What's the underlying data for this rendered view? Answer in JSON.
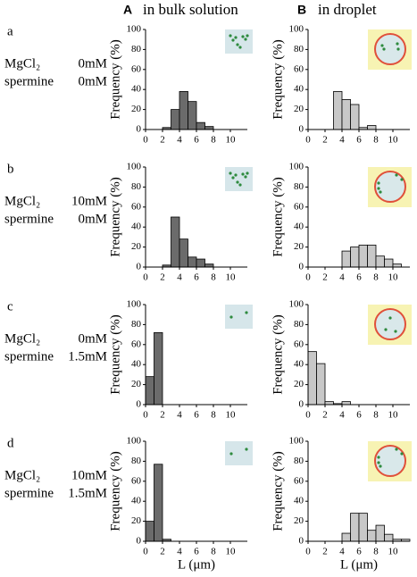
{
  "columns": [
    {
      "letter": "A",
      "title": "in bulk solution"
    },
    {
      "letter": "B",
      "title": "in droplet"
    }
  ],
  "rows": [
    {
      "label": "a",
      "mgcl2": "MgCl₂",
      "mgcl2_conc": "0mM",
      "spermine": "spermine",
      "spermine_conc": "0mM"
    },
    {
      "label": "b",
      "mgcl2": "MgCl₂",
      "mgcl2_conc": "10mM",
      "spermine": "spermine",
      "spermine_conc": "0mM"
    },
    {
      "label": "c",
      "mgcl2": "MgCl₂",
      "mgcl2_conc": "0mM",
      "spermine": "spermine",
      "spermine_conc": "1.5mM"
    },
    {
      "label": "d",
      "mgcl2": "MgCl₂",
      "mgcl2_conc": "10mM",
      "spermine": "spermine",
      "spermine_conc": "1.5mM"
    }
  ],
  "chart_data": [
    {
      "type": "histogram",
      "ylabel": "Frequency (%)",
      "color": "#6b6b6b",
      "bins": [
        0,
        1,
        2,
        3,
        4,
        5,
        6,
        7,
        8,
        9,
        10,
        11,
        12
      ],
      "values": [
        0,
        0,
        2,
        20,
        38,
        28,
        7,
        3,
        0,
        0,
        0,
        0
      ],
      "xlim": [
        0,
        12
      ],
      "ylim": [
        0,
        100
      ],
      "xticks": [
        0,
        2,
        4,
        6,
        8,
        10
      ],
      "yticks": [
        0,
        20,
        40,
        60,
        80,
        100
      ]
    },
    {
      "type": "histogram",
      "ylabel": "Frequency (%)",
      "color": "#c8c8c8",
      "bins": [
        0,
        1,
        2,
        3,
        4,
        5,
        6,
        7,
        8,
        9,
        10,
        11,
        12
      ],
      "values": [
        0,
        0,
        0,
        38,
        30,
        25,
        2,
        4,
        0,
        0,
        0,
        0
      ],
      "xlim": [
        0,
        12
      ],
      "ylim": [
        0,
        100
      ],
      "xticks": [
        0,
        2,
        4,
        6,
        8,
        10
      ],
      "yticks": [
        0,
        20,
        40,
        60,
        80,
        100
      ]
    },
    {
      "type": "histogram",
      "ylabel": "Frequency (%)",
      "color": "#6b6b6b",
      "bins": [
        0,
        1,
        2,
        3,
        4,
        5,
        6,
        7,
        8,
        9,
        10,
        11,
        12
      ],
      "values": [
        0,
        0,
        2,
        50,
        28,
        10,
        8,
        3,
        0,
        0,
        0,
        0
      ],
      "xlim": [
        0,
        12
      ],
      "ylim": [
        0,
        100
      ],
      "xticks": [
        0,
        2,
        4,
        6,
        8,
        10
      ],
      "yticks": [
        0,
        20,
        40,
        60,
        80,
        100
      ]
    },
    {
      "type": "histogram",
      "ylabel": "Frequency (%)",
      "color": "#c8c8c8",
      "bins": [
        0,
        1,
        2,
        3,
        4,
        5,
        6,
        7,
        8,
        9,
        10,
        11,
        12
      ],
      "values": [
        0,
        0,
        0,
        0,
        16,
        20,
        22,
        22,
        11,
        8,
        3,
        0
      ],
      "xlim": [
        0,
        12
      ],
      "ylim": [
        0,
        100
      ],
      "xticks": [
        0,
        2,
        4,
        6,
        8,
        10
      ],
      "yticks": [
        0,
        20,
        40,
        60,
        80,
        100
      ]
    },
    {
      "type": "histogram",
      "ylabel": "Frequency (%)",
      "color": "#6b6b6b",
      "bins": [
        0,
        1,
        2,
        3,
        4,
        5,
        6,
        7,
        8,
        9,
        10,
        11,
        12
      ],
      "values": [
        28,
        72,
        0,
        0,
        0,
        0,
        0,
        0,
        0,
        0,
        0,
        0
      ],
      "xlim": [
        0,
        12
      ],
      "ylim": [
        0,
        100
      ],
      "xticks": [
        0,
        2,
        4,
        6,
        8,
        10
      ],
      "yticks": [
        0,
        20,
        40,
        60,
        80,
        100
      ]
    },
    {
      "type": "histogram",
      "ylabel": "Frequency (%)",
      "color": "#c8c8c8",
      "bins": [
        0,
        1,
        2,
        3,
        4,
        5,
        6,
        7,
        8,
        9,
        10,
        11,
        12
      ],
      "values": [
        53,
        41,
        3,
        1,
        3,
        0,
        0,
        0,
        0,
        0,
        0,
        0
      ],
      "xlim": [
        0,
        12
      ],
      "ylim": [
        0,
        100
      ],
      "xticks": [
        0,
        2,
        4,
        6,
        8,
        10
      ],
      "yticks": [
        0,
        20,
        40,
        60,
        80,
        100
      ]
    },
    {
      "type": "histogram",
      "ylabel": "Frequency (%)",
      "xlabel": "L (μm)",
      "color": "#6b6b6b",
      "bins": [
        0,
        1,
        2,
        3,
        4,
        5,
        6,
        7,
        8,
        9,
        10,
        11,
        12
      ],
      "values": [
        20,
        77,
        2,
        0,
        0,
        0,
        0,
        0,
        0,
        0,
        0,
        0
      ],
      "xlim": [
        0,
        12
      ],
      "ylim": [
        0,
        100
      ],
      "xticks": [
        0,
        2,
        4,
        6,
        8,
        10
      ],
      "yticks": [
        0,
        20,
        40,
        60,
        80,
        100
      ]
    },
    {
      "type": "histogram",
      "ylabel": "Frequency (%)",
      "xlabel": "L (μm)",
      "color": "#c8c8c8",
      "bins": [
        0,
        1,
        2,
        3,
        4,
        5,
        6,
        7,
        8,
        9,
        10,
        11,
        12
      ],
      "values": [
        0,
        0,
        0,
        0,
        8,
        28,
        28,
        11,
        16,
        7,
        2,
        2
      ],
      "xlim": [
        0,
        12
      ],
      "ylim": [
        0,
        100
      ],
      "xticks": [
        0,
        2,
        4,
        6,
        8,
        10
      ],
      "yticks": [
        0,
        20,
        40,
        60,
        80,
        100
      ]
    }
  ]
}
